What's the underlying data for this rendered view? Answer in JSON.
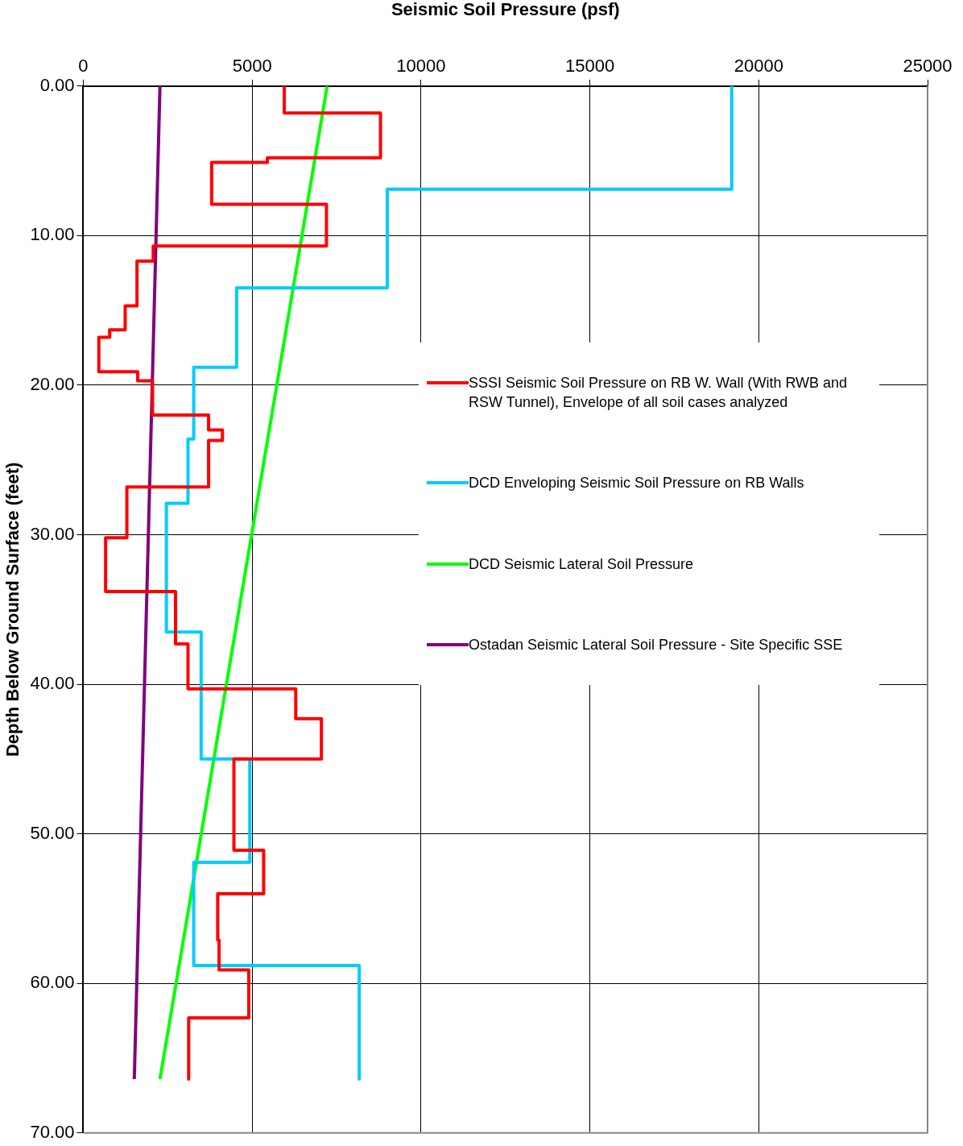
{
  "chart_data": {
    "type": "line",
    "xlabel": "Seismic Soil Pressure (psf)",
    "ylabel": "Depth Below Ground Surface (feet)",
    "xlim": [
      0,
      25000
    ],
    "xticks": [
      0,
      5000,
      10000,
      15000,
      20000,
      25000
    ],
    "ylim": [
      70,
      0
    ],
    "yticks": [
      {
        "value": 0,
        "label": "0.00"
      },
      {
        "value": 10,
        "label": "10.00"
      },
      {
        "value": 20,
        "label": "20.00"
      },
      {
        "value": 30,
        "label": "30.00"
      },
      {
        "value": 40,
        "label": "40.00"
      },
      {
        "value": 50,
        "label": "50.00"
      },
      {
        "value": 60,
        "label": "60.00"
      },
      {
        "value": 70,
        "label": "70.00"
      }
    ],
    "grid": true,
    "legend": "right",
    "marker": "none",
    "line_style": "solid",
    "series": [
      {
        "name": "SSSI Seismic Soil Pressure on RB W. Wall (With RWB and RSW Tunnel), Envelope of all soil cases analyzed",
        "color": "#ff0000",
        "x": [
          5950,
          5950,
          8800,
          8800,
          5450,
          5450,
          3800,
          3800,
          7200,
          7200,
          2070,
          2070,
          1590,
          1590,
          1240,
          1240,
          780,
          780,
          460,
          460,
          1610,
          1610,
          2050,
          2050,
          3710,
          3710,
          4120,
          4120,
          3710,
          3710,
          1290,
          1290,
          660,
          660,
          2730,
          2730,
          3100,
          3100,
          6290,
          6290,
          7050,
          7050,
          4460,
          4460,
          5340,
          5340,
          3980,
          3980,
          4020,
          4020,
          4900,
          4900,
          3120,
          3120
        ],
        "values": [
          0,
          1.8,
          1.8,
          4.8,
          4.8,
          5.1,
          5.1,
          7.9,
          7.9,
          10.7,
          10.7,
          11.7,
          11.7,
          14.7,
          14.7,
          16.3,
          16.3,
          16.8,
          16.8,
          19.1,
          19.1,
          19.7,
          19.7,
          22,
          22,
          23,
          23,
          23.7,
          23.7,
          26.8,
          26.8,
          30.2,
          30.2,
          33.8,
          33.8,
          37.3,
          37.3,
          40.3,
          40.3,
          42.3,
          42.3,
          45,
          45,
          51.1,
          51.1,
          54,
          54,
          57.1,
          57.1,
          59.1,
          59.1,
          62.3,
          62.3,
          66.4
        ]
      },
      {
        "name": "DCD Enveloping Seismic Soil Pressure on RB Walls",
        "color": "#00ccff",
        "x": [
          19200,
          19200,
          9000,
          9000,
          4540,
          4540,
          3270,
          3270,
          3100,
          3100,
          2460,
          2460,
          3490,
          3490,
          4930,
          4930,
          3270,
          3270,
          8170,
          8170
        ],
        "values": [
          0,
          6.9,
          6.9,
          13.5,
          13.5,
          18.8,
          18.8,
          23.6,
          23.6,
          27.9,
          27.9,
          36.5,
          36.5,
          45,
          45,
          51.9,
          51.9,
          58.8,
          58.8,
          66.4
        ]
      },
      {
        "name": "DCD Seismic Lateral Soil Pressure",
        "color": "#00ff00",
        "x": [
          7220,
          2270
        ],
        "values": [
          0,
          66.4
        ]
      },
      {
        "name": "Ostadan Seismic Lateral Soil Pressure - Site Specific SSE",
        "color": "#800080",
        "x": [
          2270,
          1510
        ],
        "values": [
          0,
          66.4
        ]
      }
    ]
  }
}
